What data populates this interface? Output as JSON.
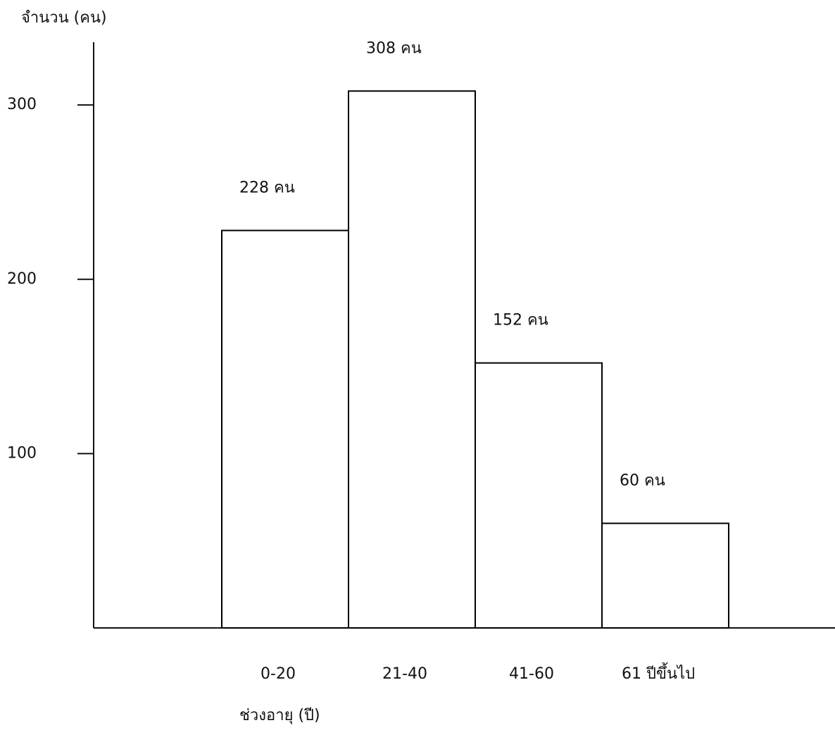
{
  "chart_data": {
    "type": "bar",
    "ylabel": "จำนวน (คน)",
    "xlabel": "ช่วงอายุ (ปี)",
    "categories": [
      "0-20",
      "21-40",
      "41-60",
      "61 ปีขึ้นไป"
    ],
    "values": [
      228,
      308,
      152,
      60
    ],
    "value_labels": [
      "228 คน",
      "308 คน",
      "152 คน",
      "60 คน"
    ],
    "color": "#000000",
    "ylim": [
      0,
      336
    ],
    "yticks": [
      100,
      200,
      300
    ]
  }
}
